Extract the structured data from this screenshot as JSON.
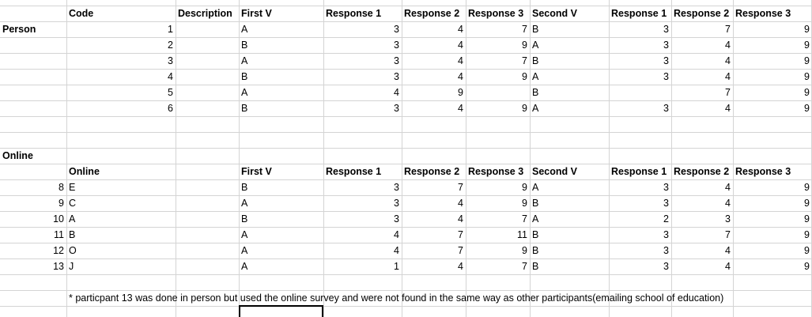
{
  "header": [
    "Code",
    "Description",
    "First V",
    "Response 1",
    "Response 2",
    "Response 3",
    "Second V",
    "Response 1",
    "Response 2",
    "Response 3"
  ],
  "person_section": {
    "label": "Person",
    "rows": [
      [
        "1",
        "A",
        "3",
        "4",
        "7",
        "B",
        "3",
        "7",
        "9"
      ],
      [
        "2",
        "B",
        "3",
        "4",
        "9",
        "A",
        "3",
        "4",
        "9"
      ],
      [
        "3",
        "A",
        "3",
        "4",
        "7",
        "B",
        "3",
        "4",
        "9"
      ],
      [
        "4",
        "B",
        "3",
        "4",
        "9",
        "A",
        "3",
        "4",
        "9"
      ],
      [
        "5",
        "A",
        "4",
        "9",
        "",
        "B",
        "",
        "7",
        "9"
      ],
      [
        "6",
        "B",
        "3",
        "4",
        "9",
        "A",
        "3",
        "4",
        "9"
      ]
    ]
  },
  "online_section": {
    "label": "Online",
    "header": [
      "Online",
      "First V",
      "Response 1",
      "Response 2",
      "Response 3",
      "Second V",
      "Response 1",
      "Response 2",
      "Response 3"
    ],
    "rows": [
      [
        "8",
        "E",
        "B",
        "3",
        "7",
        "9",
        "A",
        "3",
        "4",
        "9"
      ],
      [
        "9",
        "C",
        "A",
        "3",
        "4",
        "9",
        "B",
        "3",
        "4",
        "9"
      ],
      [
        "10",
        "A",
        "B",
        "3",
        "4",
        "7",
        "A",
        "2",
        "3",
        "9"
      ],
      [
        "11",
        "B",
        "A",
        "4",
        "7",
        "11",
        "B",
        "3",
        "7",
        "9"
      ],
      [
        "12",
        "O",
        "A",
        "4",
        "7",
        "9",
        "B",
        "3",
        "4",
        "9"
      ],
      [
        "13",
        "J",
        "A",
        "1",
        "4",
        "7",
        "B",
        "3",
        "4",
        "9"
      ]
    ]
  },
  "note": "* particpant 13 was done in person but used the online survey and were not found in the same way as other participants(emailing school of education)"
}
